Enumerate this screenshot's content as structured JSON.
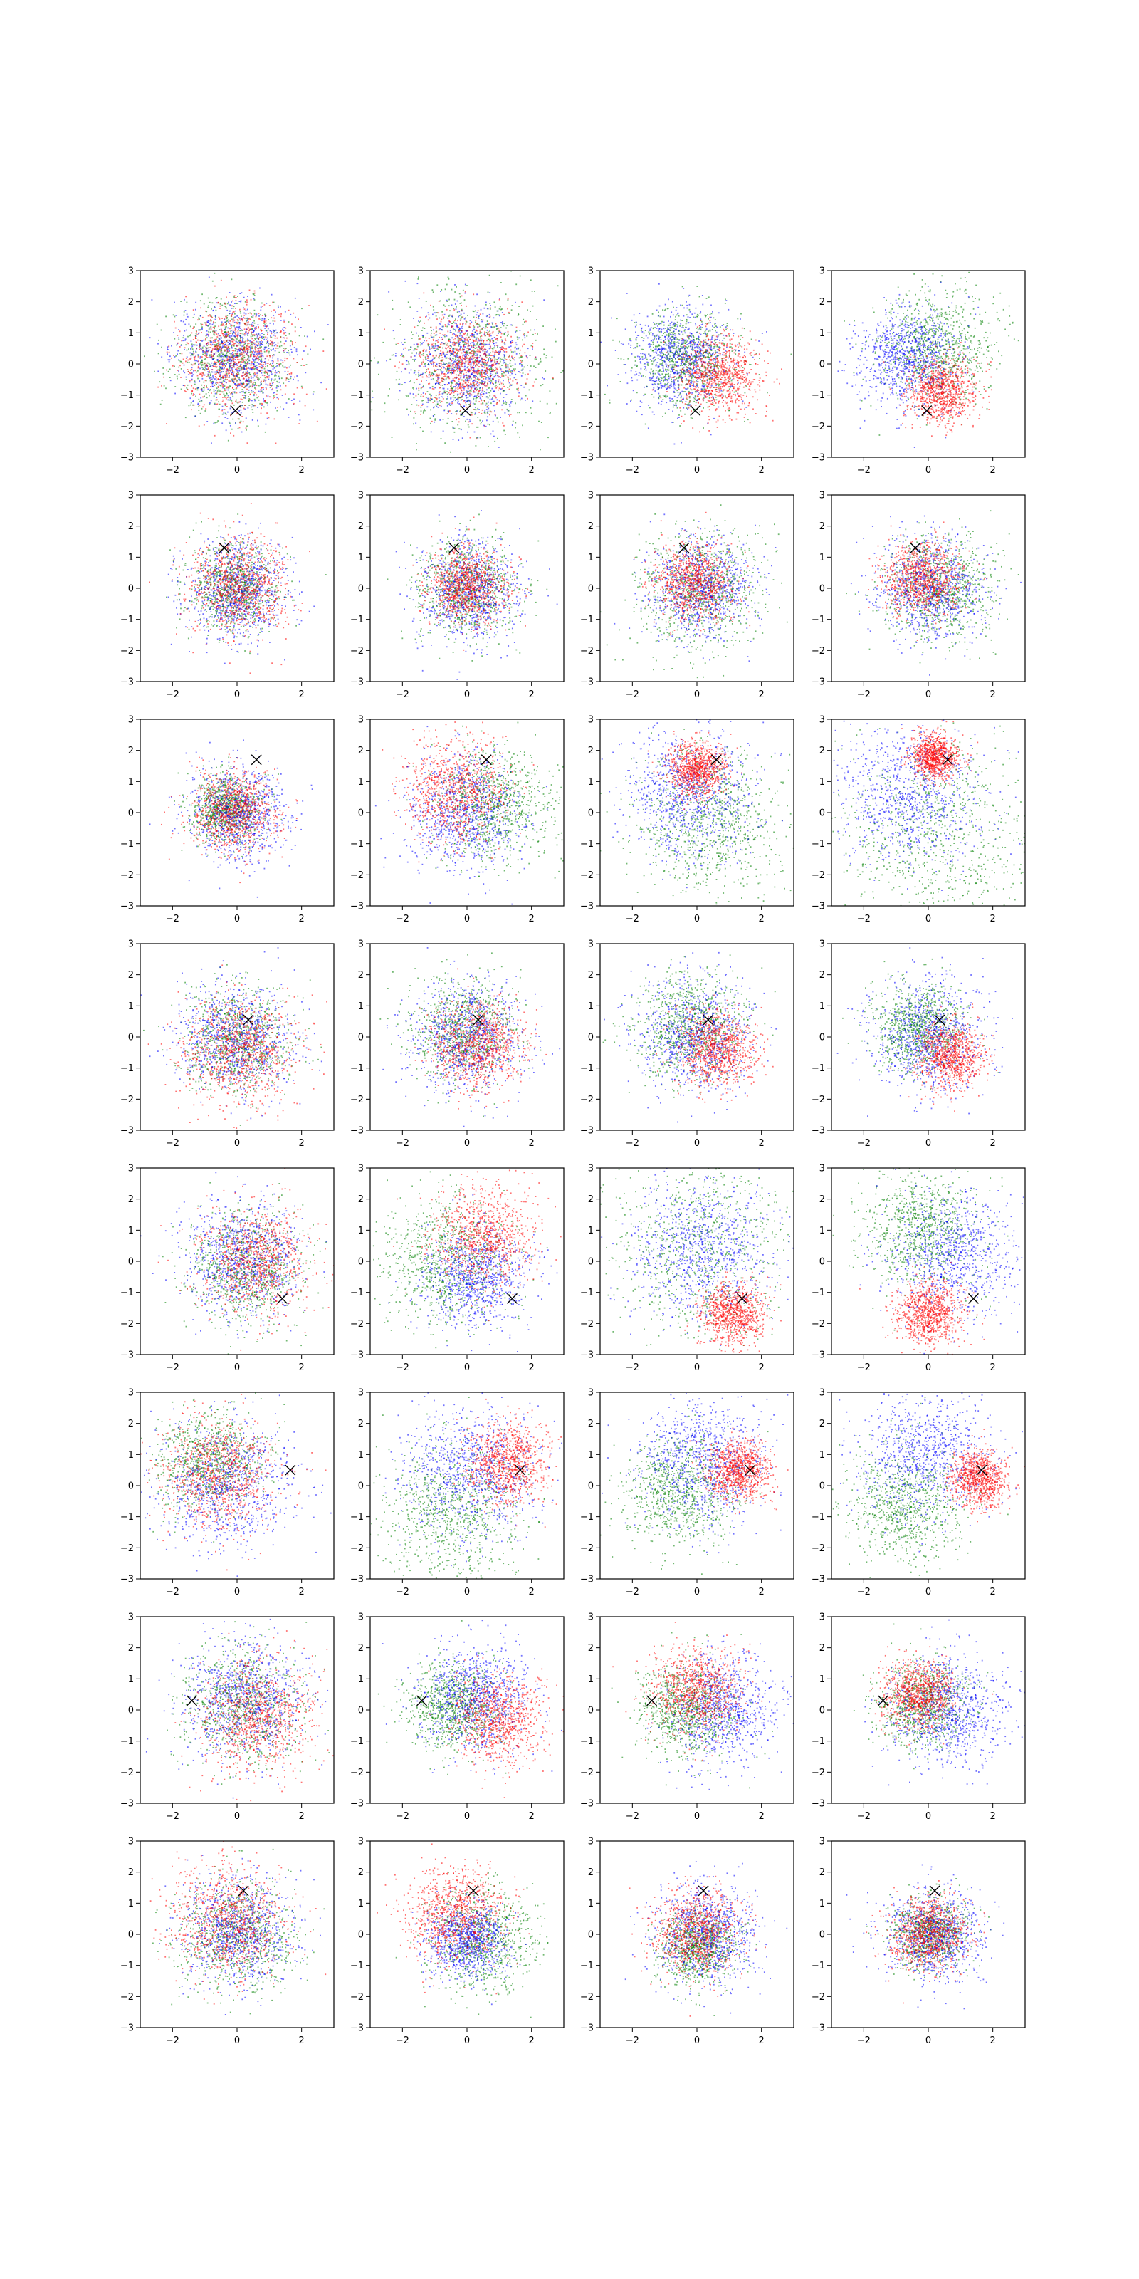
{
  "figure": {
    "layout": "8 rows x 4 columns grid of scatter subplots",
    "colors": {
      "red": "#ff0000",
      "green": "#008000",
      "blue": "#0000ff",
      "marker": "#000000"
    }
  },
  "chart_data": {
    "type": "scatter",
    "xlim": [
      -3,
      3
    ],
    "ylim": [
      -3,
      3
    ],
    "xticks": [
      -2,
      0,
      2
    ],
    "yticks": [
      -3,
      -2,
      -1,
      0,
      1,
      2,
      3
    ],
    "grid": false,
    "legend": "none",
    "point_colors": [
      "red",
      "green",
      "blue"
    ],
    "subplots": [
      {
        "row": 1,
        "col": 1,
        "marker": [
          -0.05,
          -1.5
        ],
        "clouds": {
          "red": [
            0.0,
            0.2,
            0.9
          ],
          "green": [
            -0.2,
            0.2,
            0.9
          ],
          "blue": [
            0.0,
            0.2,
            0.9
          ]
        }
      },
      {
        "row": 1,
        "col": 2,
        "marker": [
          -0.05,
          -1.5
        ],
        "clouds": {
          "red": [
            0.0,
            0.0,
            0.8
          ],
          "green": [
            0.0,
            0.0,
            1.2
          ],
          "blue": [
            0.0,
            0.0,
            0.9
          ]
        }
      },
      {
        "row": 1,
        "col": 3,
        "marker": [
          -0.05,
          -1.5
        ],
        "clouds": {
          "red": [
            0.7,
            -0.4,
            0.65
          ],
          "green": [
            -0.3,
            0.1,
            0.8
          ],
          "blue": [
            -0.5,
            0.2,
            0.8
          ]
        }
      },
      {
        "row": 1,
        "col": 4,
        "marker": [
          -0.05,
          -1.5
        ],
        "clouds": {
          "red": [
            0.4,
            -0.9,
            0.55
          ],
          "green": [
            0.3,
            0.6,
            0.9
          ],
          "blue": [
            -0.6,
            0.2,
            0.8
          ]
        }
      },
      {
        "row": 2,
        "col": 1,
        "marker": [
          -0.4,
          1.3
        ],
        "clouds": {
          "red": [
            0.0,
            0.1,
            0.75
          ],
          "green": [
            -0.1,
            0.0,
            0.7
          ],
          "blue": [
            0.0,
            0.0,
            0.8
          ]
        }
      },
      {
        "row": 2,
        "col": 2,
        "marker": [
          -0.4,
          1.3
        ],
        "clouds": {
          "red": [
            0.0,
            0.1,
            0.6
          ],
          "green": [
            0.0,
            0.0,
            0.75
          ],
          "blue": [
            0.1,
            -0.1,
            0.8
          ]
        }
      },
      {
        "row": 2,
        "col": 3,
        "marker": [
          -0.4,
          1.3
        ],
        "clouds": {
          "red": [
            -0.1,
            0.2,
            0.6
          ],
          "green": [
            0.0,
            0.0,
            1.0
          ],
          "blue": [
            0.1,
            0.0,
            0.8
          ]
        }
      },
      {
        "row": 2,
        "col": 4,
        "marker": [
          -0.4,
          1.3
        ],
        "clouds": {
          "red": [
            -0.2,
            0.3,
            0.6
          ],
          "green": [
            0.3,
            0.0,
            0.85
          ],
          "blue": [
            0.1,
            0.0,
            0.8
          ]
        }
      },
      {
        "row": 3,
        "col": 1,
        "marker": [
          0.6,
          1.7
        ],
        "clouds": {
          "red": [
            -0.1,
            0.0,
            0.65
          ],
          "green": [
            -0.3,
            0.1,
            0.55
          ],
          "blue": [
            0.0,
            0.0,
            0.75
          ]
        }
      },
      {
        "row": 3,
        "col": 2,
        "marker": [
          0.6,
          1.7
        ],
        "clouds": {
          "red": [
            -0.4,
            0.7,
            0.8
          ],
          "green": [
            0.9,
            0.3,
            0.9
          ],
          "blue": [
            0.0,
            0.0,
            0.9
          ]
        }
      },
      {
        "row": 3,
        "col": 3,
        "marker": [
          0.6,
          1.7
        ],
        "clouds": {
          "red": [
            0.0,
            1.4,
            0.45
          ],
          "green": [
            0.4,
            -0.3,
            1.1
          ],
          "blue": [
            -0.3,
            0.6,
            1.0
          ]
        }
      },
      {
        "row": 3,
        "col": 4,
        "marker": [
          0.6,
          1.7
        ],
        "clouds": {
          "red": [
            0.2,
            1.8,
            0.35
          ],
          "green": [
            0.4,
            -0.7,
            1.6
          ],
          "blue": [
            -0.6,
            0.6,
            1.1
          ]
        }
      },
      {
        "row": 4,
        "col": 1,
        "marker": [
          0.35,
          0.55
        ],
        "clouds": {
          "red": [
            0.0,
            -0.4,
            0.85
          ],
          "green": [
            0.0,
            -0.1,
            0.85
          ],
          "blue": [
            0.0,
            -0.1,
            0.9
          ]
        }
      },
      {
        "row": 4,
        "col": 2,
        "marker": [
          0.35,
          0.55
        ],
        "clouds": {
          "red": [
            0.3,
            -0.3,
            0.7
          ],
          "green": [
            -0.1,
            0.3,
            0.8
          ],
          "blue": [
            0.0,
            0.0,
            0.9
          ]
        }
      },
      {
        "row": 4,
        "col": 3,
        "marker": [
          0.35,
          0.55
        ],
        "clouds": {
          "red": [
            0.6,
            -0.4,
            0.6
          ],
          "green": [
            -0.2,
            0.3,
            0.85
          ],
          "blue": [
            0.0,
            0.0,
            0.9
          ]
        }
      },
      {
        "row": 4,
        "col": 4,
        "marker": [
          0.35,
          0.55
        ],
        "clouds": {
          "red": [
            0.7,
            -0.6,
            0.5
          ],
          "green": [
            -0.3,
            0.3,
            0.7
          ],
          "blue": [
            0.0,
            0.0,
            0.9
          ]
        }
      },
      {
        "row": 5,
        "col": 1,
        "marker": [
          1.4,
          -1.2
        ],
        "clouds": {
          "red": [
            0.6,
            0.0,
            0.85
          ],
          "green": [
            0.3,
            -0.2,
            0.9
          ],
          "blue": [
            0.2,
            0.1,
            0.9
          ]
        }
      },
      {
        "row": 5,
        "col": 2,
        "marker": [
          1.4,
          -1.2
        ],
        "clouds": {
          "red": [
            0.5,
            0.8,
            0.8
          ],
          "green": [
            -0.7,
            0.0,
            1.0
          ],
          "blue": [
            0.3,
            -0.5,
            0.8
          ]
        }
      },
      {
        "row": 5,
        "col": 3,
        "marker": [
          1.4,
          -1.2
        ],
        "clouds": {
          "red": [
            1.1,
            -1.7,
            0.5
          ],
          "green": [
            0.0,
            0.5,
            1.5
          ],
          "blue": [
            0.2,
            0.3,
            1.1
          ]
        }
      },
      {
        "row": 5,
        "col": 4,
        "marker": [
          1.4,
          -1.2
        ],
        "clouds": {
          "red": [
            0.0,
            -1.7,
            0.5
          ],
          "green": [
            -0.2,
            1.0,
            0.9
          ],
          "blue": [
            0.8,
            0.2,
            1.0
          ]
        }
      },
      {
        "row": 6,
        "col": 1,
        "marker": [
          1.65,
          0.5
        ],
        "clouds": {
          "red": [
            -0.6,
            0.4,
            0.9
          ],
          "green": [
            -0.8,
            0.8,
            0.8
          ],
          "blue": [
            -0.3,
            0.0,
            1.0
          ]
        }
      },
      {
        "row": 6,
        "col": 2,
        "marker": [
          1.65,
          0.5
        ],
        "clouds": {
          "red": [
            1.2,
            0.8,
            0.65
          ],
          "green": [
            -0.5,
            -0.8,
            1.1
          ],
          "blue": [
            0.0,
            0.5,
            1.0
          ]
        }
      },
      {
        "row": 6,
        "col": 3,
        "marker": [
          1.65,
          0.5
        ],
        "clouds": {
          "red": [
            1.3,
            0.5,
            0.5
          ],
          "green": [
            -0.6,
            -0.2,
            0.9
          ],
          "blue": [
            0.2,
            0.8,
            1.0
          ]
        }
      },
      {
        "row": 6,
        "col": 4,
        "marker": [
          1.65,
          0.5
        ],
        "clouds": {
          "red": [
            1.6,
            0.2,
            0.45
          ],
          "green": [
            -0.7,
            -0.6,
            0.9
          ],
          "blue": [
            0.0,
            1.0,
            1.0
          ]
        }
      },
      {
        "row": 7,
        "col": 1,
        "marker": [
          -1.4,
          0.3
        ],
        "clouds": {
          "red": [
            0.7,
            -0.2,
            0.9
          ],
          "green": [
            0.2,
            0.2,
            0.9
          ],
          "blue": [
            0.2,
            0.3,
            0.95
          ]
        }
      },
      {
        "row": 7,
        "col": 2,
        "marker": [
          -1.4,
          0.3
        ],
        "clouds": {
          "red": [
            1.0,
            -0.3,
            0.7
          ],
          "green": [
            -0.4,
            0.1,
            0.7
          ],
          "blue": [
            0.3,
            0.4,
            0.85
          ]
        }
      },
      {
        "row": 7,
        "col": 3,
        "marker": [
          -1.4,
          0.3
        ],
        "clouds": {
          "red": [
            0.0,
            0.6,
            0.7
          ],
          "green": [
            -0.3,
            0.0,
            0.75
          ],
          "blue": [
            0.8,
            0.0,
            0.85
          ]
        }
      },
      {
        "row": 7,
        "col": 4,
        "marker": [
          -1.4,
          0.3
        ],
        "clouds": {
          "red": [
            -0.3,
            0.5,
            0.55
          ],
          "green": [
            -0.2,
            0.2,
            0.7
          ],
          "blue": [
            0.7,
            0.0,
            0.9
          ]
        }
      },
      {
        "row": 8,
        "col": 1,
        "marker": [
          0.2,
          1.4
        ],
        "clouds": {
          "red": [
            -0.3,
            0.4,
            0.9
          ],
          "green": [
            0.0,
            0.0,
            0.9
          ],
          "blue": [
            0.0,
            0.1,
            0.85
          ]
        }
      },
      {
        "row": 8,
        "col": 2,
        "marker": [
          0.2,
          1.4
        ],
        "clouds": {
          "red": [
            -0.4,
            0.6,
            0.75
          ],
          "green": [
            0.5,
            -0.2,
            0.8
          ],
          "blue": [
            0.0,
            -0.2,
            0.6
          ]
        }
      },
      {
        "row": 8,
        "col": 3,
        "marker": [
          0.2,
          1.4
        ],
        "clouds": {
          "red": [
            0.0,
            0.1,
            0.7
          ],
          "green": [
            0.0,
            -0.4,
            0.6
          ],
          "blue": [
            0.3,
            0.0,
            0.8
          ]
        }
      },
      {
        "row": 8,
        "col": 4,
        "marker": [
          0.2,
          1.4
        ],
        "clouds": {
          "red": [
            0.0,
            0.0,
            0.6
          ],
          "green": [
            0.0,
            0.0,
            0.55
          ],
          "blue": [
            0.2,
            0.0,
            0.75
          ]
        }
      }
    ]
  }
}
